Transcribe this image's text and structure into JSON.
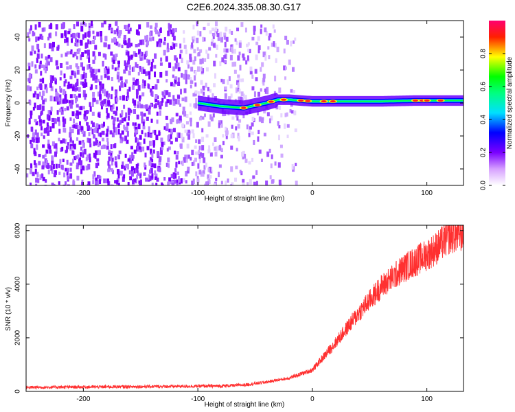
{
  "page": {
    "title": "C2E6.2024.335.08.30.G17"
  },
  "chart_data": [
    {
      "type": "heatmap",
      "xlabel": "Height of straight line (km)",
      "ylabel": "Frequency (Hz)",
      "xlim": [
        -250,
        132
      ],
      "ylim": [
        -50,
        50
      ],
      "x_ticks": [
        -200,
        -100,
        0,
        100
      ],
      "y_ticks": [
        -40,
        -20,
        0,
        20,
        40
      ],
      "colorbar": {
        "label": "Normalized spectral amplitude",
        "range": [
          0,
          1
        ],
        "ticks": [
          0.0,
          0.2,
          0.4,
          0.6,
          0.8
        ],
        "colors": [
          "#ffffff",
          "#a000ff",
          "#0000ff",
          "#00ffff",
          "#00ff00",
          "#ffff00",
          "#ff0000",
          "#ff0080"
        ]
      },
      "features": {
        "noise_region_x": [
          -250,
          -25
        ],
        "signal_line": [
          {
            "x": -100,
            "y": 0.0
          },
          {
            "x": -80,
            "y": -2.0
          },
          {
            "x": -60,
            "y": -3.0
          },
          {
            "x": -40,
            "y": 0.0
          },
          {
            "x": -30,
            "y": 2.0
          },
          {
            "x": -20,
            "y": 2.0
          },
          {
            "x": 0,
            "y": 1.0
          },
          {
            "x": 20,
            "y": 1.0
          },
          {
            "x": 60,
            "y": 1.0
          },
          {
            "x": 90,
            "y": 1.5
          },
          {
            "x": 132,
            "y": 1.5
          }
        ]
      }
    },
    {
      "type": "line",
      "xlabel": "Height of straight line (km)",
      "ylabel": "SNR (10 * v/v)",
      "xlim": [
        -250,
        132
      ],
      "ylim": [
        0,
        6200
      ],
      "x_ticks": [
        -200,
        -100,
        0,
        100
      ],
      "y_ticks": [
        0,
        2000,
        4000,
        6000
      ],
      "series": [
        {
          "color": "#ff3030",
          "trend": [
            {
              "x": -250,
              "y": 150
            },
            {
              "x": -150,
              "y": 180
            },
            {
              "x": -80,
              "y": 200
            },
            {
              "x": -60,
              "y": 240
            },
            {
              "x": -40,
              "y": 350
            },
            {
              "x": -20,
              "y": 500
            },
            {
              "x": 0,
              "y": 800
            },
            {
              "x": 20,
              "y": 1800
            },
            {
              "x": 40,
              "y": 2900
            },
            {
              "x": 60,
              "y": 3900
            },
            {
              "x": 80,
              "y": 4600
            },
            {
              "x": 100,
              "y": 5100
            },
            {
              "x": 110,
              "y": 5400
            },
            {
              "x": 120,
              "y": 5800
            },
            {
              "x": 132,
              "y": 5900
            }
          ]
        }
      ]
    }
  ]
}
